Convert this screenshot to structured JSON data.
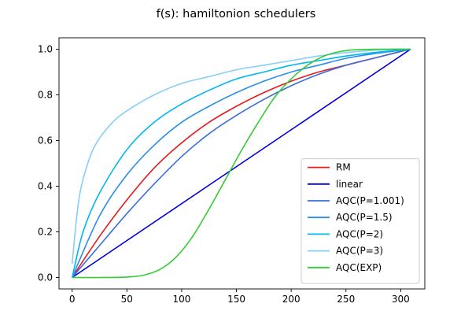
{
  "chart_data": {
    "type": "line",
    "title": "f(s): hamiltonion schedulers",
    "xlabel": "",
    "ylabel": "",
    "xlim": [
      -12,
      322
    ],
    "ylim": [
      -0.05,
      1.05
    ],
    "xticks": [
      0,
      50,
      100,
      150,
      200,
      250,
      300
    ],
    "yticks": [
      0.0,
      0.2,
      0.4,
      0.6,
      0.8,
      1.0
    ],
    "xtick_labels": [
      "0",
      "50",
      "100",
      "150",
      "200",
      "250",
      "300"
    ],
    "ytick_labels": [
      "0.0",
      "0.2",
      "0.4",
      "0.6",
      "0.8",
      "1.0"
    ],
    "grid": false,
    "legend_position": "lower-right",
    "series": [
      {
        "name": "RM",
        "color": "#e41a1c",
        "x": [
          0,
          25,
          50,
          75,
          100,
          125,
          150,
          175,
          200,
          225,
          250,
          275,
          300,
          309
        ],
        "y": [
          0.0,
          0.18,
          0.34,
          0.48,
          0.59,
          0.68,
          0.75,
          0.81,
          0.86,
          0.9,
          0.93,
          0.96,
          0.99,
          1.0
        ]
      },
      {
        "name": "linear",
        "color": "#0000dd",
        "x": [
          0,
          309
        ],
        "y": [
          0.0,
          1.0
        ]
      },
      {
        "name": "AQC(P=1.001)",
        "color": "#3a6fd8",
        "x": [
          0,
          25,
          50,
          75,
          100,
          125,
          150,
          175,
          200,
          225,
          250,
          275,
          300,
          309
        ],
        "y": [
          0.0,
          0.14,
          0.28,
          0.41,
          0.53,
          0.63,
          0.71,
          0.78,
          0.84,
          0.89,
          0.93,
          0.96,
          0.99,
          1.0
        ]
      },
      {
        "name": "AQC(P=1.5)",
        "color": "#2b8ee6",
        "x": [
          0,
          25,
          50,
          75,
          100,
          125,
          150,
          175,
          200,
          225,
          250,
          275,
          300,
          309
        ],
        "y": [
          0.0,
          0.27,
          0.45,
          0.58,
          0.68,
          0.75,
          0.81,
          0.86,
          0.9,
          0.93,
          0.96,
          0.98,
          0.995,
          1.0
        ]
      },
      {
        "name": "AQC(P=2)",
        "color": "#00b8ee",
        "x": [
          0,
          10,
          25,
          50,
          75,
          100,
          125,
          150,
          175,
          200,
          225,
          250,
          275,
          300,
          309
        ],
        "y": [
          0.0,
          0.2,
          0.37,
          0.56,
          0.68,
          0.76,
          0.82,
          0.87,
          0.9,
          0.93,
          0.95,
          0.97,
          0.985,
          0.997,
          1.0
        ]
      },
      {
        "name": "AQC(P=3)",
        "color": "#87cefa",
        "x": [
          0,
          5,
          10,
          20,
          35,
          50,
          75,
          100,
          125,
          150,
          175,
          200,
          225,
          250,
          275,
          300,
          309
        ],
        "y": [
          0.06,
          0.3,
          0.43,
          0.57,
          0.67,
          0.73,
          0.8,
          0.85,
          0.88,
          0.91,
          0.93,
          0.95,
          0.97,
          0.985,
          0.995,
          1.0,
          1.0
        ]
      },
      {
        "name": "AQC(EXP)",
        "color": "#33cc33",
        "x": [
          0,
          25,
          50,
          65,
          80,
          95,
          110,
          125,
          140,
          155,
          170,
          185,
          200,
          215,
          230,
          245,
          260,
          280,
          309
        ],
        "y": [
          0.0,
          0.0,
          0.002,
          0.01,
          0.035,
          0.09,
          0.18,
          0.3,
          0.43,
          0.56,
          0.68,
          0.79,
          0.87,
          0.93,
          0.97,
          0.99,
          0.998,
          1.0,
          1.0
        ]
      }
    ]
  }
}
